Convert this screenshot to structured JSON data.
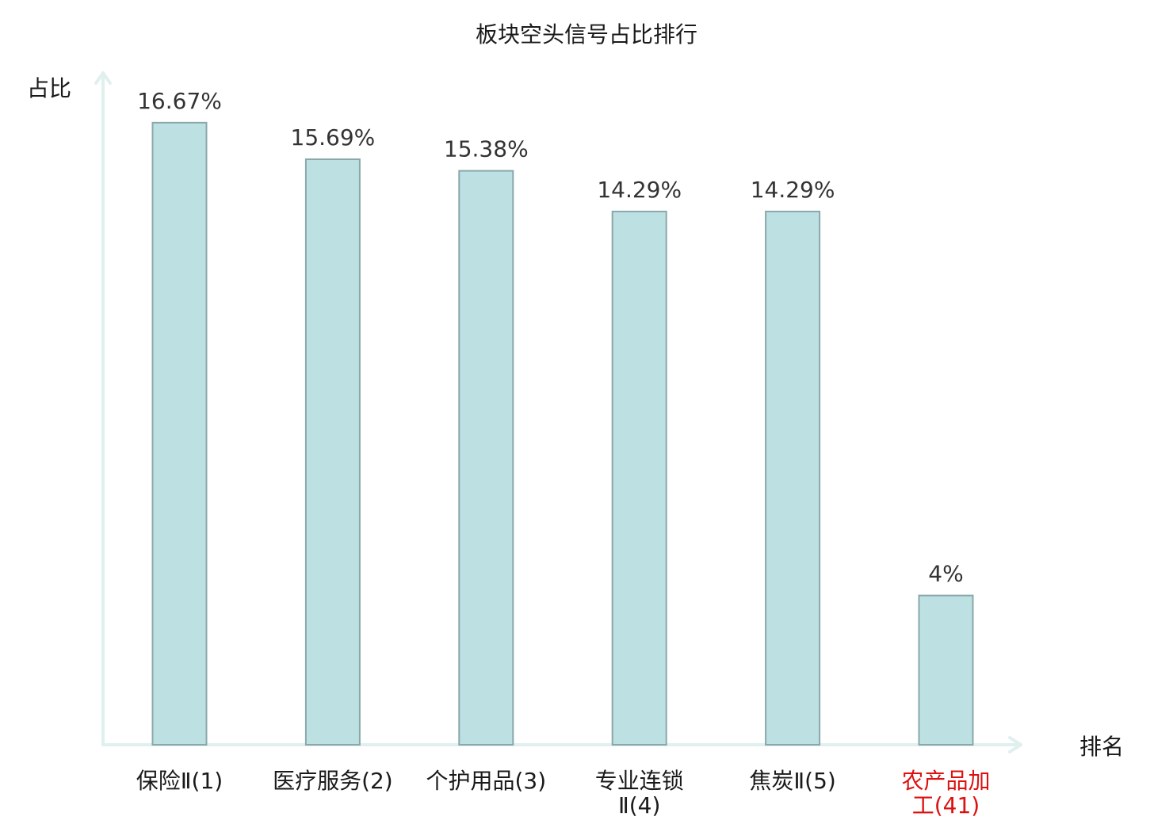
{
  "chart_data": {
    "type": "bar",
    "title": "板块空头信号占比排行",
    "xlabel": "排名",
    "ylabel": "占比",
    "ylim": [
      0,
      18
    ],
    "grid": false,
    "categories": [
      {
        "lines": [
          "保险Ⅱ(1)"
        ],
        "highlight": false
      },
      {
        "lines": [
          "医疗服务(2)"
        ],
        "highlight": false
      },
      {
        "lines": [
          "个护用品(3)"
        ],
        "highlight": false
      },
      {
        "lines": [
          "专业连锁",
          "Ⅱ(4)"
        ],
        "highlight": false
      },
      {
        "lines": [
          "焦炭Ⅱ(5)"
        ],
        "highlight": false
      },
      {
        "lines": [
          "农产品加",
          "工(41)"
        ],
        "highlight": true
      }
    ],
    "values": [
      16.67,
      15.69,
      15.38,
      14.29,
      14.29,
      4
    ],
    "data_labels": [
      "16.67%",
      "15.69%",
      "15.38%",
      "14.29%",
      "14.29%",
      "4%"
    ]
  },
  "colors": {
    "bar_fill": "#bde0e3",
    "bar_stroke": "#8aa8aa",
    "axis": "#dff0ee",
    "category_text": "#1a1a1a",
    "highlight_text": "#dd1111"
  }
}
